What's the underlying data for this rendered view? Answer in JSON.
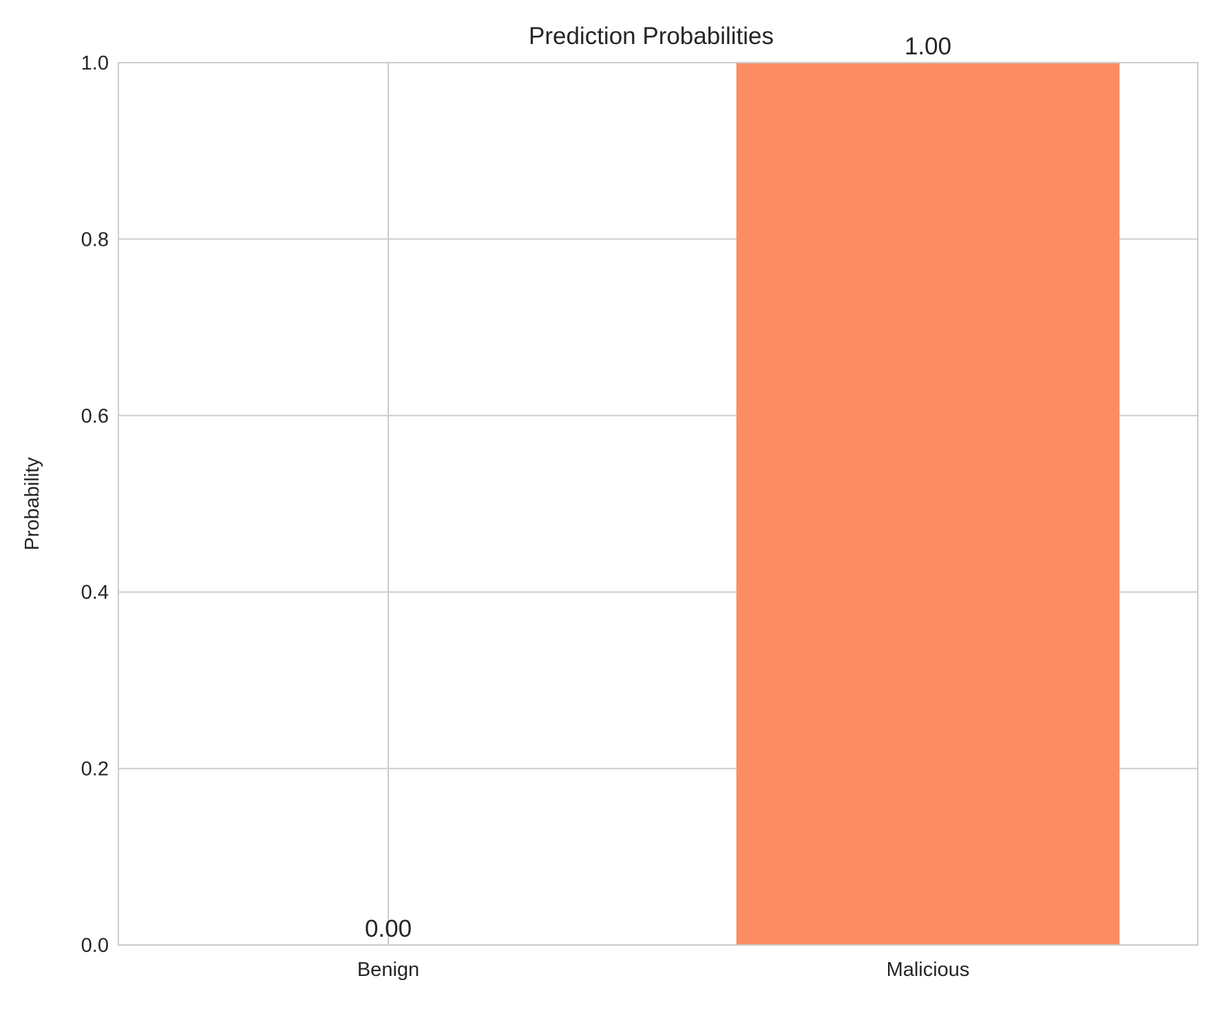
{
  "chart_data": {
    "type": "bar",
    "title": "Prediction Probabilities",
    "xlabel": "",
    "ylabel": "Probability",
    "categories": [
      "Benign",
      "Malicious"
    ],
    "values": [
      0.0,
      1.0
    ],
    "value_labels": [
      "0.00",
      "1.00"
    ],
    "ylim": [
      0,
      1
    ],
    "yticks": [
      0.0,
      0.2,
      0.4,
      0.6,
      0.8,
      1.0
    ],
    "ytick_labels": [
      "0.0",
      "0.2",
      "0.4",
      "0.6",
      "0.8",
      "1.0"
    ],
    "grid": true,
    "colors": {
      "bars": [
        "#66c2a5",
        "#fc8d62"
      ],
      "grid": "#cccccc",
      "axes": "#cccccc",
      "text": "#262626"
    }
  }
}
